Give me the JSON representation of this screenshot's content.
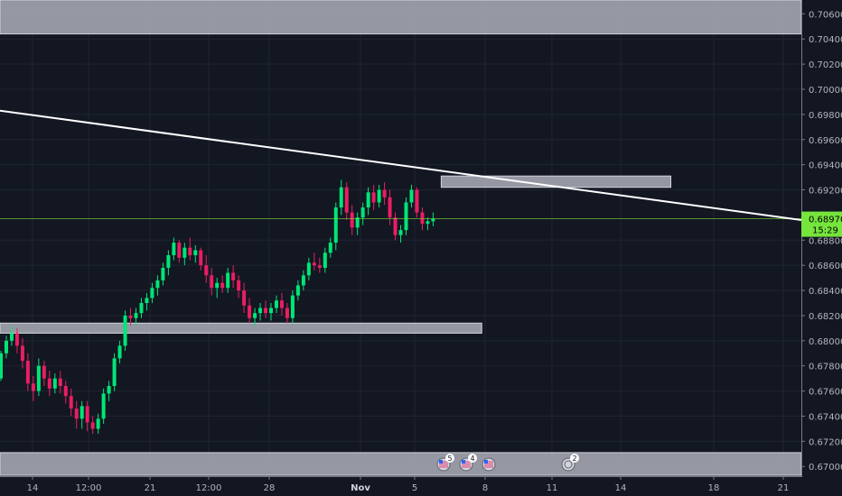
{
  "chart_data": {
    "type": "candlestick",
    "title": "",
    "xlabel": "",
    "ylabel": "",
    "ylim": [
      0.6693,
      0.7071
    ],
    "grid": true,
    "y_ticks": [
      "0.70600",
      "0.70400",
      "0.70200",
      "0.70000",
      "0.69800",
      "0.69600",
      "0.69400",
      "0.69200",
      "0.68800",
      "0.68600",
      "0.68400",
      "0.68200",
      "0.68000",
      "0.67800",
      "0.67600",
      "0.67400",
      "0.67200",
      "0.67000"
    ],
    "x_ticks": [
      "14",
      "12:00",
      "21",
      "12:00",
      "28",
      "Nov",
      "5",
      "8",
      "11",
      "14",
      "18",
      "21"
    ],
    "x_tick_bold": [
      "Nov"
    ],
    "current_price": "0.68970",
    "countdown": "15:29",
    "colors": {
      "background": "#131722",
      "up": "#00e676",
      "down": "#e91e63",
      "price_line": "#76e53c",
      "zone": "#b2b5be",
      "trendline": "#ffffff",
      "axis_text": "#b2b5be"
    },
    "zones": [
      {
        "label": "resistance-zone-top",
        "price_low": 0.7044,
        "price_high": 0.7071,
        "from_index": 0,
        "to_index": 200
      },
      {
        "label": "resistance-zone-mid",
        "price_low": 0.6922,
        "price_high": 0.6931,
        "from_index": 82,
        "to_index": 124
      },
      {
        "label": "support-zone",
        "price_low": 0.6806,
        "price_high": 0.6814,
        "from_index": 0,
        "to_index": 89
      },
      {
        "label": "support-zone-bottom",
        "price_low": 0.6693,
        "price_high": 0.6711,
        "from_index": 0,
        "to_index": 200
      }
    ],
    "trendline": {
      "from": {
        "index": 0,
        "price": 0.6983
      },
      "to": {
        "index": 200,
        "price": 0.6896
      }
    },
    "event_markers": [
      {
        "badge": "5",
        "flag": "us-flag"
      },
      {
        "badge": "4",
        "flag": "us-flag"
      },
      {
        "badge": "",
        "flag": "us-flag"
      },
      {
        "badge": "2",
        "flag": "globe"
      }
    ],
    "candles": [
      [
        0.677,
        0.6792,
        0.6768,
        0.679
      ],
      [
        0.679,
        0.6804,
        0.6786,
        0.68
      ],
      [
        0.68,
        0.6812,
        0.6796,
        0.6806
      ],
      [
        0.6806,
        0.681,
        0.679,
        0.6796
      ],
      [
        0.6796,
        0.6802,
        0.6778,
        0.6784
      ],
      [
        0.6784,
        0.679,
        0.676,
        0.6766
      ],
      [
        0.6766,
        0.6772,
        0.6752,
        0.676
      ],
      [
        0.676,
        0.6786,
        0.6756,
        0.678
      ],
      [
        0.678,
        0.6784,
        0.6764,
        0.677
      ],
      [
        0.677,
        0.6776,
        0.6756,
        0.6762
      ],
      [
        0.6762,
        0.6774,
        0.6758,
        0.677
      ],
      [
        0.677,
        0.6776,
        0.6758,
        0.6764
      ],
      [
        0.6764,
        0.6768,
        0.675,
        0.6756
      ],
      [
        0.6756,
        0.6762,
        0.674,
        0.6746
      ],
      [
        0.6746,
        0.6752,
        0.673,
        0.6738
      ],
      [
        0.6738,
        0.6752,
        0.673,
        0.6748
      ],
      [
        0.6748,
        0.6752,
        0.6728,
        0.6735
      ],
      [
        0.6735,
        0.674,
        0.6726,
        0.673
      ],
      [
        0.673,
        0.6742,
        0.6726,
        0.6738
      ],
      [
        0.6738,
        0.6762,
        0.6734,
        0.6758
      ],
      [
        0.6758,
        0.6768,
        0.6752,
        0.6764
      ],
      [
        0.6764,
        0.679,
        0.676,
        0.6786
      ],
      [
        0.6786,
        0.68,
        0.6782,
        0.6796
      ],
      [
        0.6796,
        0.6824,
        0.6792,
        0.682
      ],
      [
        0.682,
        0.6826,
        0.6812,
        0.6818
      ],
      [
        0.6818,
        0.6826,
        0.6812,
        0.6822
      ],
      [
        0.6822,
        0.6834,
        0.6818,
        0.683
      ],
      [
        0.683,
        0.6838,
        0.6824,
        0.6834
      ],
      [
        0.6834,
        0.6846,
        0.683,
        0.6842
      ],
      [
        0.6842,
        0.6852,
        0.6836,
        0.6848
      ],
      [
        0.6848,
        0.6862,
        0.6844,
        0.6858
      ],
      [
        0.6858,
        0.6872,
        0.6852,
        0.6868
      ],
      [
        0.6868,
        0.6882,
        0.6864,
        0.6878
      ],
      [
        0.6878,
        0.688,
        0.6862,
        0.6866
      ],
      [
        0.6866,
        0.6878,
        0.686,
        0.6874
      ],
      [
        0.6874,
        0.6882,
        0.6864,
        0.6868
      ],
      [
        0.6868,
        0.6876,
        0.6862,
        0.6872
      ],
      [
        0.6872,
        0.6874,
        0.6856,
        0.686
      ],
      [
        0.686,
        0.6868,
        0.6846,
        0.6852
      ],
      [
        0.6852,
        0.6858,
        0.6836,
        0.6842
      ],
      [
        0.6842,
        0.685,
        0.6834,
        0.6846
      ],
      [
        0.6846,
        0.6852,
        0.6838,
        0.6842
      ],
      [
        0.6842,
        0.6858,
        0.6838,
        0.6854
      ],
      [
        0.6854,
        0.686,
        0.6842,
        0.6848
      ],
      [
        0.6848,
        0.6852,
        0.6834,
        0.684
      ],
      [
        0.684,
        0.6846,
        0.6822,
        0.6828
      ],
      [
        0.6828,
        0.6834,
        0.6814,
        0.6818
      ],
      [
        0.6818,
        0.6826,
        0.6812,
        0.6822
      ],
      [
        0.6822,
        0.683,
        0.6816,
        0.6826
      ],
      [
        0.6826,
        0.6832,
        0.6818,
        0.6822
      ],
      [
        0.6822,
        0.683,
        0.6816,
        0.6826
      ],
      [
        0.6826,
        0.6836,
        0.6822,
        0.6832
      ],
      [
        0.6832,
        0.6838,
        0.682,
        0.6826
      ],
      [
        0.6826,
        0.683,
        0.6814,
        0.6818
      ],
      [
        0.6818,
        0.684,
        0.6814,
        0.6836
      ],
      [
        0.6836,
        0.6848,
        0.6832,
        0.6844
      ],
      [
        0.6844,
        0.6856,
        0.684,
        0.6852
      ],
      [
        0.6852,
        0.6866,
        0.6848,
        0.6862
      ],
      [
        0.6862,
        0.687,
        0.6856,
        0.686
      ],
      [
        0.686,
        0.6866,
        0.6854,
        0.6858
      ],
      [
        0.6858,
        0.6874,
        0.6854,
        0.687
      ],
      [
        0.687,
        0.6882,
        0.6866,
        0.6878
      ],
      [
        0.6878,
        0.691,
        0.6872,
        0.6906
      ],
      [
        0.6906,
        0.6928,
        0.69,
        0.6922
      ],
      [
        0.6922,
        0.6926,
        0.6896,
        0.6902
      ],
      [
        0.6902,
        0.6908,
        0.6884,
        0.689
      ],
      [
        0.689,
        0.6902,
        0.6884,
        0.6898
      ],
      [
        0.6898,
        0.691,
        0.6892,
        0.6906
      ],
      [
        0.6906,
        0.6922,
        0.69,
        0.6918
      ],
      [
        0.6918,
        0.6924,
        0.6904,
        0.691
      ],
      [
        0.691,
        0.6924,
        0.6906,
        0.692
      ],
      [
        0.692,
        0.6926,
        0.6908,
        0.6914
      ],
      [
        0.6914,
        0.692,
        0.6892,
        0.6898
      ],
      [
        0.6898,
        0.6902,
        0.688,
        0.6884
      ],
      [
        0.6884,
        0.6892,
        0.6878,
        0.6888
      ],
      [
        0.6888,
        0.6914,
        0.6884,
        0.691
      ],
      [
        0.691,
        0.6924,
        0.6906,
        0.692
      ],
      [
        0.692,
        0.6922,
        0.6898,
        0.6902
      ],
      [
        0.6902,
        0.6906,
        0.6888,
        0.6893
      ],
      [
        0.6893,
        0.6898,
        0.6888,
        0.6895
      ],
      [
        0.6895,
        0.6902,
        0.6891,
        0.6897
      ]
    ]
  }
}
